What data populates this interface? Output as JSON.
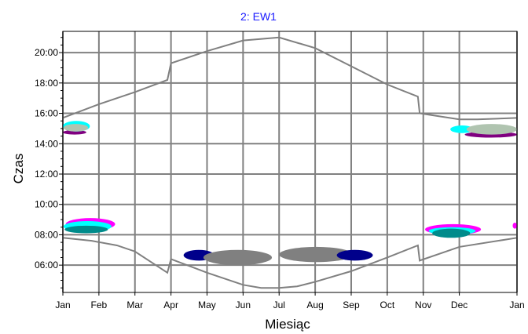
{
  "chart_data": {
    "type": "line",
    "title": "2: EW1",
    "title_color": "#1a1aff",
    "xlabel": "Miesiąc",
    "ylabel": "Czas",
    "grid": true,
    "grid_color": "#808080",
    "xlim": [
      0,
      12.6
    ],
    "ylim": [
      4.2,
      21.4
    ],
    "x_ticks": [
      {
        "x": 0,
        "label": "Jan"
      },
      {
        "x": 1,
        "label": "Feb"
      },
      {
        "x": 2,
        "label": "Mar"
      },
      {
        "x": 3,
        "label": "Apr"
      },
      {
        "x": 4,
        "label": "May"
      },
      {
        "x": 5,
        "label": "Jun"
      },
      {
        "x": 6,
        "label": "Jul"
      },
      {
        "x": 7,
        "label": "Aug"
      },
      {
        "x": 8,
        "label": "Sep"
      },
      {
        "x": 9,
        "label": "Oct"
      },
      {
        "x": 10,
        "label": "Nov"
      },
      {
        "x": 11,
        "label": "Dec"
      },
      {
        "x": 12.6,
        "label": "Jan"
      }
    ],
    "y_ticks": [
      {
        "y": 6,
        "label": "06:00"
      },
      {
        "y": 8,
        "label": "08:00"
      },
      {
        "y": 10,
        "label": "10:00"
      },
      {
        "y": 12,
        "label": "12:00"
      },
      {
        "y": 14,
        "label": "14:00"
      },
      {
        "y": 16,
        "label": "16:00"
      },
      {
        "y": 18,
        "label": "18:00"
      },
      {
        "y": 20,
        "label": "20:00"
      }
    ],
    "series": [
      {
        "line_color": "#808080",
        "x": [
          0,
          1,
          2,
          2.9,
          3,
          4,
          5,
          6,
          7,
          8,
          9,
          9.85,
          9.9,
          11,
          11.5,
          12.6
        ],
        "y": [
          15.7,
          16.6,
          17.4,
          18.2,
          19.3,
          20.1,
          20.8,
          21.0,
          20.3,
          19.1,
          17.9,
          17.1,
          16.0,
          15.6,
          15.6,
          15.7
        ]
      },
      {
        "line_color": "#808080",
        "x": [
          0,
          0.8,
          1.5,
          2,
          2.9,
          3,
          4,
          5,
          5.5,
          6,
          6.5,
          7,
          8,
          9,
          9.85,
          9.9,
          11,
          12.6
        ],
        "y": [
          7.8,
          7.6,
          7.3,
          6.9,
          5.5,
          6.4,
          5.5,
          4.7,
          4.5,
          4.5,
          4.6,
          4.9,
          5.6,
          6.5,
          7.3,
          6.3,
          7.2,
          7.8
        ]
      }
    ],
    "blobs": [
      {
        "color": "#ff00ff",
        "x": [
          0.08,
          1.45
        ],
        "y": [
          8.3,
          9.1
        ]
      },
      {
        "color": "#00ffff",
        "x": [
          0.02,
          1.35
        ],
        "y": [
          8.2,
          8.9
        ]
      },
      {
        "color": "#008b8b",
        "x": [
          0.05,
          1.25
        ],
        "y": [
          8.1,
          8.6
        ]
      },
      {
        "color": "#800080",
        "x": [
          0.0,
          0.65
        ],
        "y": [
          14.6,
          14.9
        ]
      },
      {
        "color": "#00ffff",
        "x": [
          0.0,
          0.75
        ],
        "y": [
          14.8,
          15.5
        ]
      },
      {
        "color": "#b0c4b0",
        "x": [
          0.02,
          0.7
        ],
        "y": [
          14.8,
          15.3
        ]
      },
      {
        "color": "#00008b",
        "x": [
          3.35,
          4.2
        ],
        "y": [
          6.3,
          7.0
        ]
      },
      {
        "color": "#808080",
        "x": [
          3.9,
          5.8
        ],
        "y": [
          6.0,
          7.0
        ]
      },
      {
        "color": "#808080",
        "x": [
          6.0,
          8.05
        ],
        "y": [
          6.2,
          7.2
        ]
      },
      {
        "color": "#00008b",
        "x": [
          7.6,
          8.6
        ],
        "y": [
          6.3,
          7.0
        ]
      },
      {
        "color": "#ff00ff",
        "x": [
          10.05,
          11.6
        ],
        "y": [
          8.0,
          8.7
        ]
      },
      {
        "color": "#00ffff",
        "x": [
          10.15,
          11.45
        ],
        "y": [
          8.0,
          8.5
        ]
      },
      {
        "color": "#008b8b",
        "x": [
          10.25,
          11.3
        ],
        "y": [
          7.8,
          8.4
        ]
      },
      {
        "color": "#ff00ff",
        "x": [
          12.48,
          12.6
        ],
        "y": [
          8.4,
          8.8
        ]
      },
      {
        "color": "#00ffff",
        "x": [
          10.75,
          11.4
        ],
        "y": [
          14.7,
          15.2
        ]
      },
      {
        "color": "#800080",
        "x": [
          11.15,
          12.6
        ],
        "y": [
          14.4,
          14.8
        ]
      },
      {
        "color": "#b0c4b0",
        "x": [
          11.2,
          12.6
        ],
        "y": [
          14.6,
          15.3
        ]
      }
    ]
  }
}
